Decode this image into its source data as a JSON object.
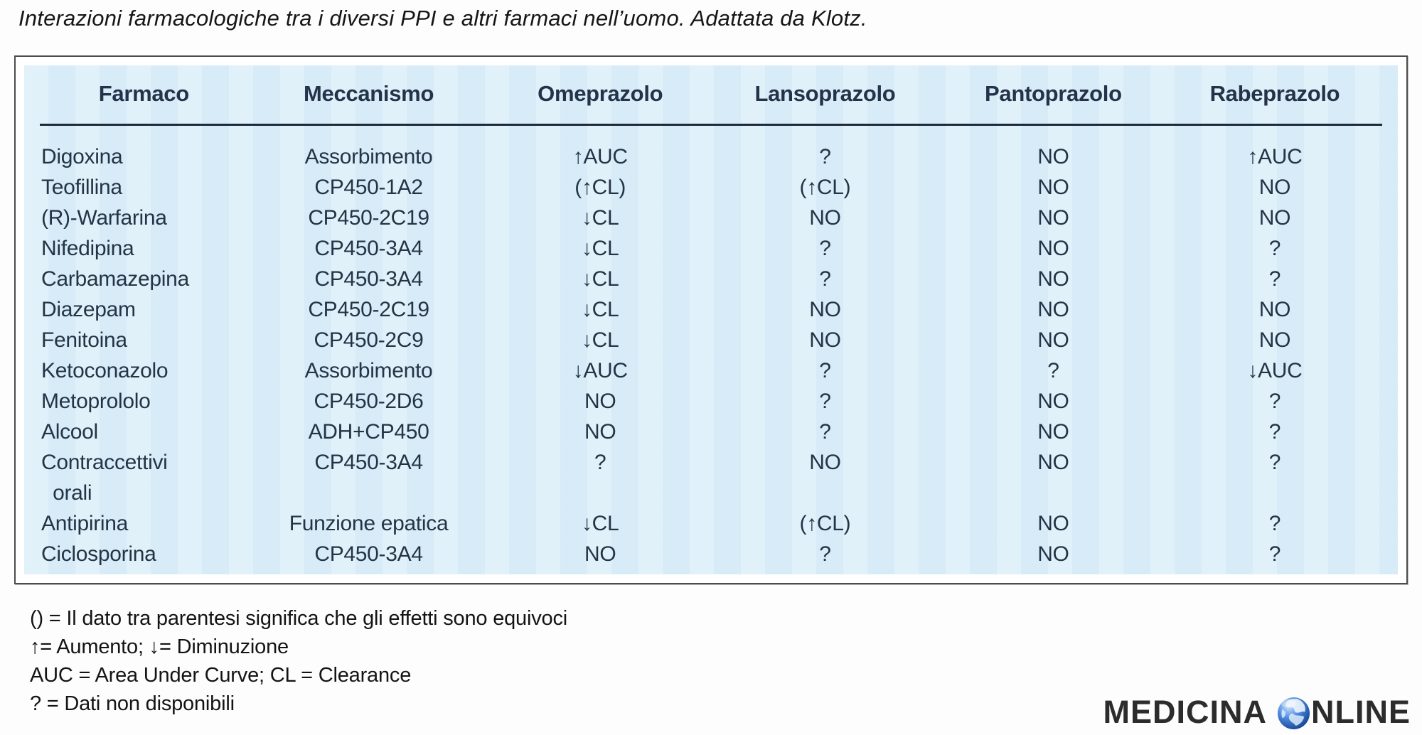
{
  "caption": "Interazioni farmacologiche tra i diversi PPI e altri farmaci nell’uomo. Adattata da Klotz.",
  "table": {
    "columns": [
      "Farmaco",
      "Meccanismo",
      "Omeprazolo",
      "Lansoprazolo",
      "Pantoprazolo",
      "Rabeprazolo"
    ],
    "rows": [
      [
        "Digoxina",
        "Assorbimento",
        "↑AUC",
        "?",
        "NO",
        "↑AUC"
      ],
      [
        "Teofillina",
        "CP450-1A2",
        "(↑CL)",
        "(↑CL)",
        "NO",
        "NO"
      ],
      [
        "(R)-Warfarina",
        "CP450-2C19",
        "↓CL",
        "NO",
        "NO",
        "NO"
      ],
      [
        "Nifedipina",
        "CP450-3A4",
        "↓CL",
        "?",
        "NO",
        "?"
      ],
      [
        "Carbamazepina",
        "CP450-3A4",
        "↓CL",
        "?",
        "NO",
        "?"
      ],
      [
        "Diazepam",
        "CP450-2C19",
        "↓CL",
        "NO",
        "NO",
        "NO"
      ],
      [
        "Fenitoina",
        "CP450-2C9",
        "↓CL",
        "NO",
        "NO",
        "NO"
      ],
      [
        "Ketoconazolo",
        "Assorbimento",
        "↓AUC",
        "?",
        "?",
        "↓AUC"
      ],
      [
        "Metoprololo",
        "CP450-2D6",
        "NO",
        "?",
        "NO",
        "?"
      ],
      [
        "Alcool",
        "ADH+CP450",
        "NO",
        "?",
        "NO",
        "?"
      ],
      [
        "Contraccettivi\n  orali",
        "CP450-3A4",
        "?",
        "NO",
        "NO",
        "?"
      ],
      [
        "Antipirina",
        "Funzione epatica",
        "↓CL",
        "(↑CL)",
        "NO",
        "?"
      ],
      [
        "Ciclosporina",
        "CP450-3A4",
        "NO",
        "?",
        "NO",
        "?"
      ]
    ]
  },
  "legend": {
    "lines": [
      "() = Il dato tra parentesi significa che gli effetti sono equivoci",
      "↑= Aumento; ↓= Diminuzione",
      "AUC = Area Under Curve; CL = Clearance",
      "? = Dati non disponibili"
    ]
  },
  "watermark": {
    "part1": "MEDICINA",
    "part2": "NLINE",
    "icon": "globe-icon"
  },
  "colors": {
    "panel_bg": "#dbeef9",
    "table_text": "#243447",
    "header_rule": "#1e2b3c",
    "box_border": "#4c4c4c",
    "watermark_text": "#2c2c2c",
    "globe_blue": "#2f72d6"
  }
}
